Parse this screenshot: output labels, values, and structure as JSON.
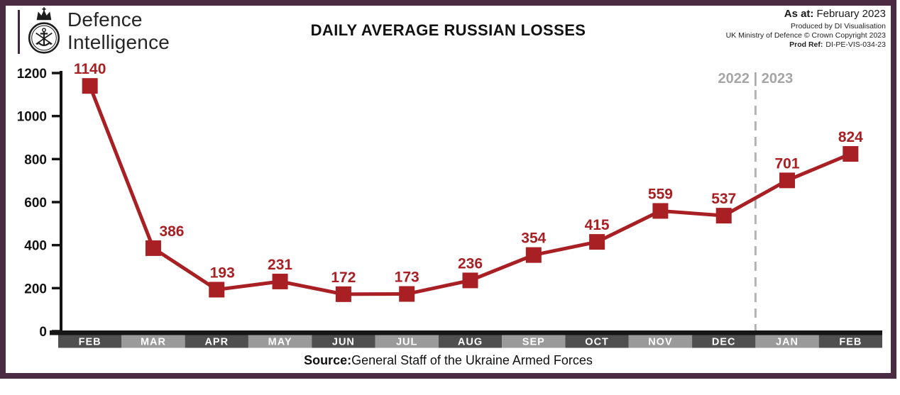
{
  "header": {
    "logo": {
      "line1": "Defence",
      "line2": "Intelligence"
    },
    "title": "DAILY AVERAGE RUSSIAN LOSSES",
    "meta": {
      "as_at_label": "As at:",
      "as_at_value": "February 2023",
      "produced_line": "Produced by DI Visualisation",
      "copyright_line": "UK Ministry of Defence © Crown Copyright 2023",
      "prod_ref_label": "Prod Ref:",
      "prod_ref_value": "DI-PE-VIS-034-23"
    }
  },
  "chart_data": {
    "type": "line",
    "title": "DAILY AVERAGE RUSSIAN LOSSES",
    "categories": [
      "FEB",
      "MAR",
      "APR",
      "MAY",
      "JUN",
      "JUL",
      "AUG",
      "SEP",
      "OCT",
      "NOV",
      "DEC",
      "JAN",
      "FEB"
    ],
    "values": [
      1140,
      386,
      193,
      231,
      172,
      173,
      236,
      354,
      415,
      559,
      537,
      701,
      824
    ],
    "ylim": [
      0,
      1200
    ],
    "yticks": [
      0,
      200,
      400,
      600,
      800,
      1000,
      1200
    ],
    "grid": false,
    "legend": false,
    "marker": "square",
    "year_divider": {
      "boundary_index": 11,
      "label": "2022 | 2023"
    },
    "label_dx": [
      0,
      26,
      8,
      0,
      0,
      0,
      0,
      0,
      0,
      0,
      0,
      0,
      0
    ],
    "colors": {
      "line": "#a81f24",
      "point_label": "#a81f24",
      "axis": "#131313",
      "month_cell_dark": "#4f4f4f",
      "month_cell_light": "#9a9a9a",
      "month_strip": "#161616",
      "month_text": "#ffffff",
      "divider": "#b3b3b3",
      "year_label": "#a6a6a6"
    }
  },
  "footer": {
    "source_label": "Source:",
    "source_text": "General Staff of the Ukraine Armed Forces"
  },
  "colors": {
    "frame_border": "#4a2b42"
  }
}
